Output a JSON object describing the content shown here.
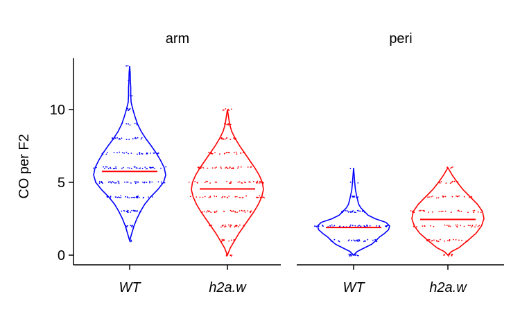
{
  "chart_data": {
    "type": "violin",
    "ylabel": "CO per F2",
    "ylim": [
      -0.5,
      13.5
    ],
    "yticks": [
      0,
      5,
      10
    ],
    "categories": [
      "WT",
      "h2a.w"
    ],
    "colors": {
      "WT": "#0000ff",
      "h2a.w": "#ff0000",
      "mean_line": "#ff0000"
    },
    "grid": false,
    "legend": "none",
    "panels": [
      {
        "title": "arm",
        "violins": [
          {
            "category": "WT",
            "min": 1,
            "max": 13,
            "mean": 5.75,
            "density": [
              [
                1,
                0.0
              ],
              [
                1.5,
                0.06
              ],
              [
                2,
                0.12
              ],
              [
                2.5,
                0.2
              ],
              [
                3,
                0.3
              ],
              [
                3.5,
                0.42
              ],
              [
                4,
                0.58
              ],
              [
                4.5,
                0.78
              ],
              [
                5,
                0.94
              ],
              [
                5.5,
                1.0
              ],
              [
                6,
                0.96
              ],
              [
                6.5,
                0.86
              ],
              [
                7,
                0.74
              ],
              [
                7.5,
                0.6
              ],
              [
                8,
                0.45
              ],
              [
                8.5,
                0.32
              ],
              [
                9,
                0.22
              ],
              [
                9.5,
                0.15
              ],
              [
                10,
                0.09
              ],
              [
                10.5,
                0.04
              ],
              [
                11,
                0.03
              ],
              [
                11.5,
                0.03
              ],
              [
                12,
                0.02
              ],
              [
                12.5,
                0.015
              ],
              [
                13,
                0.0
              ]
            ],
            "counts": [
              [
                1,
                3
              ],
              [
                2,
                10
              ],
              [
                3,
                22
              ],
              [
                4,
                32
              ],
              [
                5,
                40
              ],
              [
                6,
                38
              ],
              [
                7,
                30
              ],
              [
                8,
                20
              ],
              [
                9,
                8
              ],
              [
                10,
                6
              ],
              [
                11,
                2
              ],
              [
                12,
                1
              ],
              [
                13,
                2
              ]
            ]
          },
          {
            "category": "h2a.w",
            "min": 0,
            "max": 10,
            "mean": 4.55,
            "density": [
              [
                0,
                0.0
              ],
              [
                0.5,
                0.08
              ],
              [
                1,
                0.2
              ],
              [
                1.5,
                0.32
              ],
              [
                2,
                0.46
              ],
              [
                2.5,
                0.6
              ],
              [
                3,
                0.74
              ],
              [
                3.5,
                0.86
              ],
              [
                4,
                0.95
              ],
              [
                4.5,
                1.0
              ],
              [
                5,
                0.97
              ],
              [
                5.5,
                0.88
              ],
              [
                6,
                0.76
              ],
              [
                6.5,
                0.62
              ],
              [
                7,
                0.48
              ],
              [
                7.5,
                0.34
              ],
              [
                8,
                0.22
              ],
              [
                8.5,
                0.12
              ],
              [
                9,
                0.06
              ],
              [
                9.5,
                0.03
              ],
              [
                10,
                0.0
              ]
            ],
            "counts": [
              [
                0,
                6
              ],
              [
                1,
                12
              ],
              [
                2,
                24
              ],
              [
                3,
                30
              ],
              [
                4,
                34
              ],
              [
                5,
                36
              ],
              [
                6,
                30
              ],
              [
                7,
                22
              ],
              [
                8,
                14
              ],
              [
                9,
                8
              ],
              [
                10,
                6
              ]
            ]
          }
        ]
      },
      {
        "title": "peri",
        "violins": [
          {
            "category": "WT",
            "min": 0,
            "max": 6,
            "mean": 1.9,
            "density": [
              [
                0,
                0.0
              ],
              [
                0.25,
                0.1
              ],
              [
                0.5,
                0.3
              ],
              [
                0.75,
                0.5
              ],
              [
                1,
                0.62
              ],
              [
                1.25,
                0.72
              ],
              [
                1.5,
                0.86
              ],
              [
                1.75,
                0.97
              ],
              [
                2,
                1.0
              ],
              [
                2.25,
                0.9
              ],
              [
                2.5,
                0.6
              ],
              [
                2.75,
                0.4
              ],
              [
                3,
                0.3
              ],
              [
                3.25,
                0.2
              ],
              [
                3.5,
                0.14
              ],
              [
                4,
                0.09
              ],
              [
                4.5,
                0.05
              ],
              [
                5,
                0.03
              ],
              [
                5.5,
                0.015
              ],
              [
                6,
                0.0
              ]
            ],
            "counts": [
              [
                0,
                14
              ],
              [
                1,
                30
              ],
              [
                2,
                42
              ],
              [
                3,
                26
              ],
              [
                4,
                8
              ],
              [
                5,
                3
              ],
              [
                6,
                1
              ]
            ]
          },
          {
            "category": "h2a.w",
            "min": 0,
            "max": 6,
            "mean": 2.45,
            "density": [
              [
                0,
                0.0
              ],
              [
                0.25,
                0.1
              ],
              [
                0.5,
                0.3
              ],
              [
                1,
                0.55
              ],
              [
                1.5,
                0.78
              ],
              [
                2,
                0.93
              ],
              [
                2.5,
                1.0
              ],
              [
                3,
                0.96
              ],
              [
                3.5,
                0.82
              ],
              [
                4,
                0.62
              ],
              [
                4.5,
                0.42
              ],
              [
                5,
                0.26
              ],
              [
                5.5,
                0.12
              ],
              [
                6,
                0.0
              ]
            ],
            "counts": [
              [
                0,
                10
              ],
              [
                1,
                22
              ],
              [
                2,
                28
              ],
              [
                3,
                28
              ],
              [
                4,
                20
              ],
              [
                5,
                12
              ],
              [
                6,
                4
              ]
            ]
          }
        ]
      }
    ]
  }
}
